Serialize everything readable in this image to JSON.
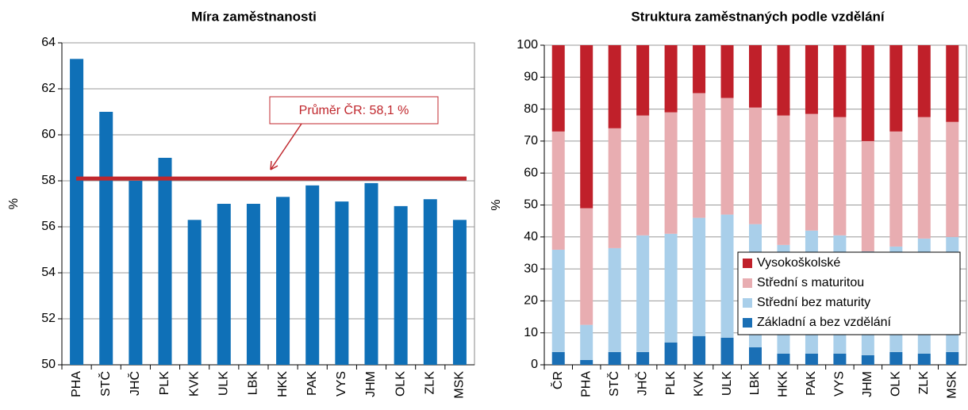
{
  "chart_data": [
    {
      "type": "bar",
      "title": "Míra zaměstnanosti",
      "ylabel": "%",
      "categories": [
        "PHA",
        "STČ",
        "JHČ",
        "PLK",
        "KVK",
        "ULK",
        "LBK",
        "HKK",
        "PAK",
        "VYS",
        "JHM",
        "OLK",
        "ZLK",
        "MSK"
      ],
      "values": [
        63.3,
        61.0,
        58.0,
        59.0,
        56.3,
        57.0,
        57.0,
        57.3,
        57.8,
        57.1,
        57.9,
        56.9,
        57.2,
        56.3
      ],
      "color": "#0f70b7",
      "ylim": [
        50,
        64
      ],
      "yticks": [
        50,
        52,
        54,
        56,
        58,
        60,
        62,
        64
      ],
      "grid": true,
      "reference_line": 58.1,
      "reference_color": "#c0272d",
      "annotation": "Průměr ČR: 58,1 %"
    },
    {
      "type": "stacked_bar",
      "title": "Struktura zaměstnaných podle vzdělání",
      "ylabel": "%",
      "categories": [
        "ČR",
        "PHA",
        "STČ",
        "JHČ",
        "PLK",
        "KVK",
        "ULK",
        "LBK",
        "HKK",
        "PAK",
        "VYS",
        "JHM",
        "OLK",
        "ZLK",
        "MSK"
      ],
      "series": [
        {
          "name": "Základní a bez vzdělání",
          "color": "#1a6fb5",
          "values": [
            4,
            1.5,
            4,
            4,
            7,
            9,
            8.5,
            5.5,
            3.5,
            3.5,
            3.5,
            3,
            4,
            3.5,
            4
          ]
        },
        {
          "name": "Střední bez maturity",
          "color": "#a9cfea",
          "values": [
            32,
            11,
            32.5,
            36.5,
            34,
            37,
            38.5,
            38.5,
            34,
            38.5,
            37,
            32.5,
            33,
            36,
            36
          ]
        },
        {
          "name": "Střední s maturitou",
          "color": "#e8adb1",
          "values": [
            37,
            36.5,
            37.5,
            37.5,
            38,
            39,
            36.5,
            36.5,
            40.5,
            36.5,
            37,
            34.5,
            36,
            38,
            36
          ]
        },
        {
          "name": "Vysokoškolské",
          "color": "#c0202a",
          "values": [
            27,
            51,
            26,
            22,
            21,
            15,
            16.5,
            19.5,
            22,
            21.5,
            22.5,
            30,
            27,
            22.5,
            24
          ]
        }
      ],
      "ylim": [
        0,
        100
      ],
      "yticks": [
        0,
        10,
        20,
        30,
        40,
        50,
        60,
        70,
        80,
        90,
        100
      ],
      "grid": true,
      "legend": "lower right"
    }
  ]
}
